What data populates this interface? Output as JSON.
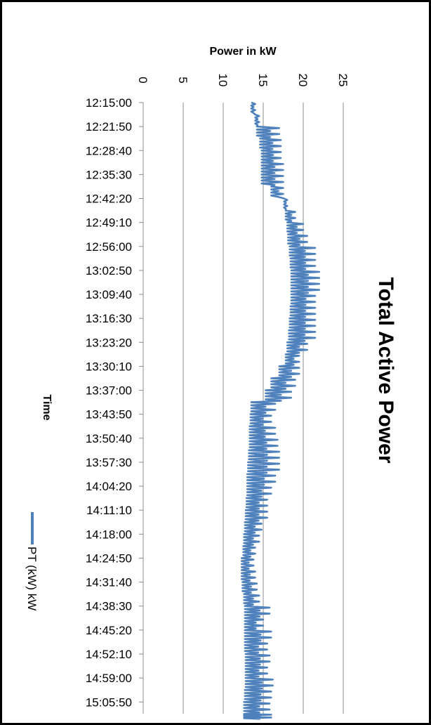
{
  "chart_data": {
    "type": "line",
    "title": "Total Active Power",
    "xlabel": "Power in kW",
    "ylabel": "Time",
    "orientation": "rotated 90° clockwise (power axis across the top, time axis down the left)",
    "power_ticks": [
      "0",
      "5",
      "10",
      "15",
      "20",
      "25"
    ],
    "power_range": [
      0,
      25
    ],
    "time_ticks": [
      "12:15:00",
      "12:21:50",
      "12:28:40",
      "12:35:30",
      "12:42:20",
      "12:49:10",
      "12:56:00",
      "13:02:50",
      "13:09:40",
      "13:16:30",
      "13:23:20",
      "13:30:10",
      "13:37:00",
      "13:43:50",
      "13:50:40",
      "13:57:30",
      "14:04:20",
      "14:11:10",
      "14:18:00",
      "14:24:50",
      "14:31:40",
      "14:38:30",
      "14:45:20",
      "14:52:10",
      "14:59:00",
      "15:05:50"
    ],
    "grid": true,
    "legend_position": "bottom-left",
    "series": [
      {
        "name": "PT (kW) kW",
        "color": "#4F81BD",
        "x": [
          "12:15:00",
          "12:18:25",
          "12:21:50",
          "12:25:15",
          "12:28:40",
          "12:32:05",
          "12:35:30",
          "12:38:55",
          "12:42:20",
          "12:45:45",
          "12:49:10",
          "12:52:35",
          "12:56:00",
          "12:59:25",
          "13:02:50",
          "13:06:15",
          "13:09:40",
          "13:13:05",
          "13:16:30",
          "13:19:55",
          "13:23:20",
          "13:26:45",
          "13:30:10",
          "13:33:35",
          "13:37:00",
          "13:40:25",
          "13:43:50",
          "13:47:15",
          "13:50:40",
          "13:54:05",
          "13:57:30",
          "14:00:55",
          "14:04:20",
          "14:07:45",
          "14:11:10",
          "14:14:35",
          "14:18:00",
          "14:21:25",
          "14:24:50",
          "14:28:15",
          "14:31:40",
          "14:35:05",
          "14:38:30",
          "14:41:55",
          "14:45:20",
          "14:48:45",
          "14:52:10",
          "14:55:35",
          "14:59:00",
          "15:02:25",
          "15:05:50",
          "15:09:15"
        ],
        "low": [
          13.5,
          14.0,
          14.2,
          14.6,
          14.8,
          14.8,
          14.8,
          16.0,
          17.6,
          17.8,
          18.0,
          18.1,
          18.3,
          18.4,
          18.5,
          18.5,
          18.5,
          18.4,
          18.3,
          18.2,
          18.0,
          17.8,
          17.0,
          16.0,
          15.3,
          13.5,
          13.4,
          13.3,
          13.3,
          13.2,
          13.1,
          13.0,
          13.0,
          12.9,
          12.8,
          12.7,
          12.6,
          12.5,
          12.3,
          12.3,
          12.4,
          12.6,
          12.7,
          12.7,
          12.7,
          12.7,
          12.8,
          12.8,
          12.8,
          12.7,
          12.6,
          12.6
        ],
        "high": [
          14.0,
          14.5,
          17.0,
          17.2,
          17.2,
          17.5,
          17.5,
          17.5,
          18.0,
          19.0,
          20.0,
          20.5,
          21.5,
          21.5,
          22.0,
          22.0,
          21.5,
          21.5,
          21.5,
          21.5,
          20.5,
          19.5,
          19.5,
          19.0,
          18.5,
          16.5,
          16.0,
          16.5,
          16.8,
          17.0,
          17.0,
          16.5,
          16.0,
          15.5,
          15.5,
          14.8,
          14.5,
          14.0,
          13.8,
          14.0,
          14.2,
          14.5,
          15.8,
          15.0,
          16.0,
          15.5,
          15.8,
          15.5,
          16.2,
          16.0,
          15.8,
          16.0
        ]
      }
    ]
  }
}
